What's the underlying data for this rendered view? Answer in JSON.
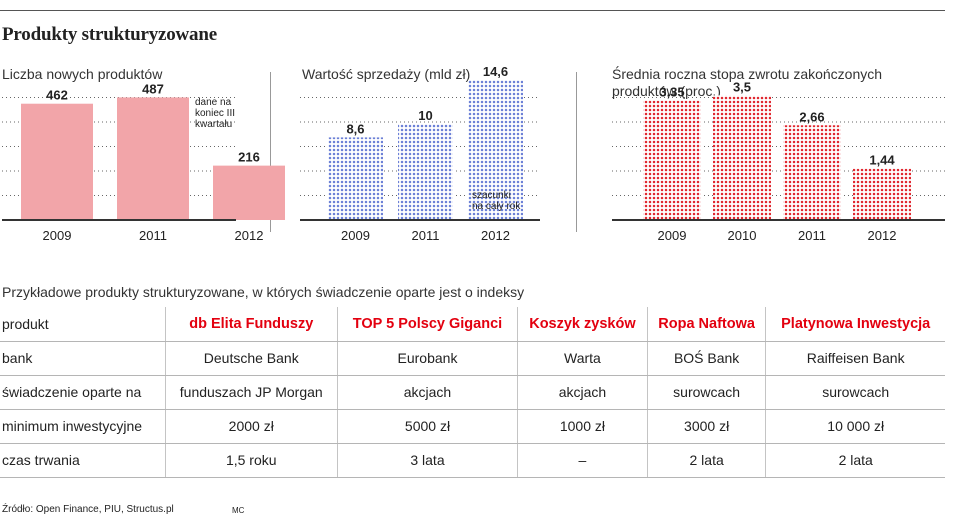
{
  "title": "Produkty strukturyzowane",
  "chart_data": [
    {
      "type": "bar",
      "title": "Liczba nowych produktów",
      "categories": [
        "2009",
        "2011",
        "2012"
      ],
      "values": [
        462,
        487,
        216
      ],
      "value_labels": [
        "462",
        "487",
        "216"
      ],
      "ylim": [
        0,
        580
      ],
      "color": "#f2a5a9",
      "pattern": "solid",
      "annotation": {
        "lines": [
          "dane na",
          "koniec III",
          "kwartału"
        ],
        "category": "2011"
      }
    },
    {
      "type": "bar",
      "title": "Wartość sprzedaży (mld zł)",
      "categories": [
        "2009",
        "2011",
        "2012"
      ],
      "values": [
        8.6,
        10,
        14.6
      ],
      "value_labels": [
        "8,6",
        "10",
        "14,6"
      ],
      "ylim": [
        0,
        15.2
      ],
      "color": "#6b7fd6",
      "pattern": "dots",
      "annotation": {
        "lines": [
          "szacunki",
          "na cały rok"
        ],
        "category": "2012"
      }
    },
    {
      "type": "bar",
      "title": "Średnia roczna stopa zwrotu zakończonych produktów (proc.)",
      "title_lines": [
        "Średnia roczna stopa zwrotu zakończonych",
        "produktów (proc.)"
      ],
      "categories": [
        "2009",
        "2010",
        "2011",
        "2012"
      ],
      "values": [
        3.35,
        3.5,
        2.66,
        1.44
      ],
      "value_labels": [
        "3,35",
        "3,5",
        "2,66",
        "1,44"
      ],
      "ylim": [
        0,
        4.1
      ],
      "color": "#e0262e",
      "pattern": "dots"
    }
  ],
  "table": {
    "title": "Przykładowe produkty strukturyzowane, w których świadczenie oparte jest o indeksy",
    "header_label": "produkt",
    "products": [
      "db Elita Funduszy",
      "TOP 5 Polscy Giganci",
      "Koszyk zysków",
      "Ropa Naftowa",
      "Platynowa Inwestycja"
    ],
    "rows": [
      {
        "label": "bank",
        "values": [
          "Deutsche Bank",
          "Eurobank",
          "Warta",
          "BOŚ Bank",
          "Raiffeisen Bank"
        ]
      },
      {
        "label": "świadczenie oparte na",
        "values": [
          "funduszach JP Morgan",
          "akcjach",
          "akcjach",
          "surowcach",
          "surowcach"
        ]
      },
      {
        "label": "minimum inwestycyjne",
        "values": [
          "2000 zł",
          "5000 zł",
          "1000 zł",
          "3000 zł",
          "10 000 zł"
        ]
      },
      {
        "label": "czas trwania",
        "values": [
          "1,5 roku",
          "3 lata",
          "–",
          "2 lata",
          "2 lata"
        ]
      }
    ]
  },
  "source": {
    "label": "Źródło:",
    "text": "Open Finance, PIU, Structus.pl"
  },
  "credit": "MC",
  "colors": {
    "accent_red": "#e3000f",
    "text": "#222222",
    "rule": "#555555"
  }
}
